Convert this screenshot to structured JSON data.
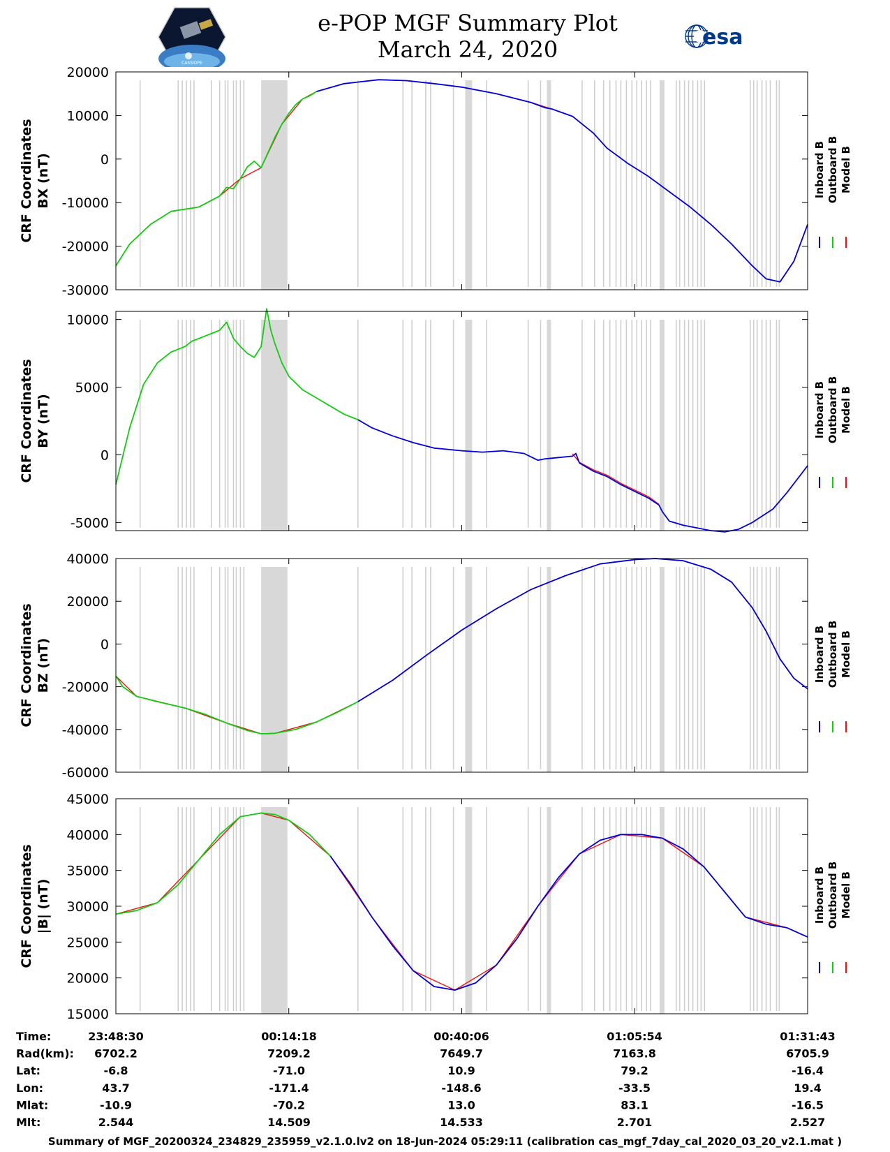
{
  "header": {
    "title": "e-POP MGF Summary Plot",
    "date": "March 24, 2020",
    "logo_left_text": "CASSIOPE",
    "logo_right_text": "esa"
  },
  "colors": {
    "inboard": "#0000dd",
    "outboard": "#11cc11",
    "model": "#ee1111",
    "gap_shade": "#d8d8d8",
    "gap_line": "#cfcfcf",
    "esa_blue": "#003a8c"
  },
  "legend": [
    "Inboard B",
    "Outboard B",
    "Model B"
  ],
  "chart_data": [
    {
      "type": "line",
      "id": "bx",
      "ylabel_line1": "CRF Coordinates",
      "ylabel_line2": "BX (nT)",
      "ylim": [
        -30000,
        20000
      ],
      "yticks": [
        20000,
        10000,
        0,
        -10000,
        -20000,
        -30000
      ],
      "xlim": [
        0,
        100
      ],
      "green_until": 29,
      "series": [
        {
          "name": "Outboard B",
          "x": [
            0,
            2,
            5,
            8,
            10,
            11,
            12,
            13,
            15,
            16,
            17,
            18,
            19,
            20,
            21,
            22,
            23,
            24,
            25,
            26,
            27,
            28,
            29
          ],
          "y": [
            -24500,
            -19500,
            -15000,
            -12000,
            -11500,
            -11300,
            -11000,
            -10200,
            -8500,
            -6500,
            -6800,
            -4500,
            -1800,
            -500,
            -2000,
            1500,
            5000,
            8000,
            10500,
            12500,
            13800,
            14500,
            15500
          ]
        },
        {
          "name": "Inboard B",
          "x": [
            29,
            33,
            38,
            42,
            46,
            50,
            55,
            60,
            62,
            63,
            66,
            69,
            71,
            74,
            77,
            80,
            83,
            86,
            89,
            92,
            94,
            96,
            98,
            100
          ],
          "y": [
            15500,
            17300,
            18200,
            18000,
            17300,
            16500,
            15000,
            13000,
            11800,
            11500,
            9800,
            6000,
            2500,
            -1000,
            -4000,
            -7500,
            -11000,
            -15000,
            -19500,
            -24500,
            -27500,
            -28200,
            -23500,
            -15000
          ]
        },
        {
          "name": "Model B",
          "x": [
            0,
            2,
            5,
            8,
            10,
            12,
            15,
            18,
            21,
            24,
            27,
            29,
            33,
            38,
            42,
            46,
            50,
            55,
            60,
            63,
            66,
            69,
            71,
            74,
            77,
            80,
            83,
            86,
            89,
            92,
            94,
            96,
            98,
            100
          ],
          "y": [
            -24500,
            -19500,
            -15000,
            -12000,
            -11500,
            -11000,
            -8500,
            -4500,
            -2000,
            8000,
            13800,
            15500,
            17300,
            18200,
            18000,
            17300,
            16500,
            15000,
            13000,
            11500,
            9800,
            6000,
            2500,
            -1000,
            -4000,
            -7500,
            -11000,
            -15000,
            -19500,
            -24500,
            -27500,
            -28200,
            -23500,
            -15000
          ]
        }
      ]
    },
    {
      "type": "line",
      "id": "by",
      "ylabel_line1": "CRF Coordinates",
      "ylabel_line2": "BY (nT)",
      "ylim": [
        -5600,
        10600
      ],
      "yticks": [
        10000,
        5000,
        0,
        -5000
      ],
      "xlim": [
        0,
        100
      ],
      "green_until": 35,
      "series": [
        {
          "name": "Outboard B",
          "x": [
            0,
            2,
            4,
            6,
            8,
            10,
            11,
            12,
            13,
            14,
            15,
            16,
            17,
            18,
            19,
            20,
            21,
            21.8,
            22.4,
            23,
            24,
            25,
            27,
            29,
            31,
            33,
            35
          ],
          "y": [
            -2200,
            2000,
            5200,
            6800,
            7600,
            8000,
            8400,
            8600,
            8800,
            9000,
            9200,
            9800,
            8600,
            8000,
            7500,
            7200,
            8000,
            10800,
            9200,
            8200,
            6800,
            5800,
            4800,
            4200,
            3600,
            3000,
            2600
          ]
        },
        {
          "name": "Inboard B",
          "x": [
            35,
            37,
            40,
            43,
            46,
            50,
            53,
            56,
            59,
            61,
            62,
            64,
            66,
            66.5,
            67,
            69,
            71,
            73,
            75,
            77,
            78.5,
            79,
            80,
            82,
            84,
            86,
            88,
            90,
            92,
            95,
            97,
            100
          ],
          "y": [
            2600,
            2000,
            1400,
            900,
            500,
            300,
            200,
            300,
            100,
            -400,
            -300,
            -200,
            -100,
            100,
            -600,
            -1200,
            -1600,
            -2200,
            -2700,
            -3200,
            -3700,
            -4200,
            -4900,
            -5200,
            -5400,
            -5600,
            -5700,
            -5500,
            -5000,
            -4000,
            -2800,
            -800
          ]
        },
        {
          "name": "Model B",
          "x": [
            66,
            67,
            69,
            71,
            73,
            75,
            77,
            78.5
          ],
          "y": [
            80,
            -550,
            -1100,
            -1500,
            -2100,
            -2600,
            -3100,
            -3650
          ]
        }
      ]
    },
    {
      "type": "line",
      "id": "bz",
      "ylabel_line1": "CRF Coordinates",
      "ylabel_line2": "BZ (nT)",
      "ylim": [
        -60000,
        40000
      ],
      "yticks": [
        40000,
        20000,
        0,
        -20000,
        -40000,
        -60000
      ],
      "xlim": [
        0,
        100
      ],
      "green_until": 35,
      "series": [
        {
          "name": "Outboard B",
          "x": [
            0,
            1,
            3,
            6,
            10,
            13,
            16,
            19,
            21,
            22,
            23,
            26,
            29,
            32,
            35
          ],
          "y": [
            -15000,
            -20000,
            -24500,
            -27000,
            -30000,
            -33000,
            -37000,
            -40500,
            -42000,
            -42000,
            -41800,
            -40000,
            -36500,
            -32000,
            -27000
          ]
        },
        {
          "name": "Inboard B",
          "x": [
            35,
            40,
            45,
            50,
            55,
            60,
            65,
            70,
            75,
            78,
            82,
            86,
            89,
            92,
            94,
            96,
            98,
            100
          ],
          "y": [
            -27000,
            -17000,
            -5000,
            6500,
            16500,
            25500,
            32000,
            37500,
            39500,
            40000,
            39000,
            35000,
            29000,
            17000,
            6000,
            -7000,
            -16000,
            -21000
          ]
        },
        {
          "name": "Model B",
          "x": [
            0,
            3,
            10,
            16,
            21,
            23,
            29,
            35,
            40,
            45,
            50,
            55,
            60,
            65,
            70,
            75,
            78,
            82,
            86,
            89,
            92,
            94,
            96,
            98,
            100
          ],
          "y": [
            -15000,
            -24500,
            -30000,
            -37000,
            -42000,
            -41800,
            -36500,
            -27000,
            -17000,
            -5000,
            6500,
            16500,
            25500,
            32000,
            37500,
            39500,
            40000,
            39000,
            35000,
            29000,
            17000,
            6000,
            -7000,
            -16000,
            -21000
          ]
        }
      ]
    },
    {
      "type": "line",
      "id": "bmag",
      "ylabel_line1": "CRF Coordinates",
      "ylabel_line2": "|B| (nT)",
      "ylim": [
        15000,
        45000
      ],
      "yticks": [
        45000,
        40000,
        35000,
        30000,
        25000,
        20000,
        15000
      ],
      "xlim": [
        0,
        100
      ],
      "green_until": 31,
      "series": [
        {
          "name": "Outboard B",
          "x": [
            0,
            3,
            6,
            9,
            12,
            15,
            18,
            21,
            23,
            25,
            28,
            31
          ],
          "y": [
            28900,
            29400,
            30500,
            33000,
            36500,
            40000,
            42500,
            43000,
            42800,
            42000,
            40000,
            37000
          ]
        },
        {
          "name": "Inboard B",
          "x": [
            31,
            34,
            37,
            40,
            43,
            46,
            49,
            52,
            55,
            58,
            61,
            64,
            67,
            70,
            73,
            76,
            79,
            82,
            85,
            88,
            91,
            94,
            97,
            100
          ],
          "y": [
            37000,
            33000,
            28500,
            24500,
            21000,
            18800,
            18300,
            19300,
            21800,
            25500,
            30000,
            34000,
            37300,
            39200,
            40000,
            40000,
            39500,
            38000,
            35500,
            32000,
            28500,
            27500,
            27000,
            25700
          ]
        },
        {
          "name": "Model B",
          "x": [
            0,
            6,
            12,
            18,
            21,
            25,
            31,
            37,
            43,
            49,
            55,
            61,
            67,
            73,
            79,
            85,
            91,
            97,
            100
          ],
          "y": [
            28900,
            30500,
            36500,
            42500,
            43000,
            42000,
            37000,
            28500,
            21000,
            18300,
            21800,
            30000,
            37300,
            40000,
            39500,
            35500,
            28500,
            27000,
            25700
          ]
        }
      ]
    }
  ],
  "gaps": {
    "bands": [
      [
        21,
        24.8
      ],
      [
        50.5,
        51.5
      ],
      [
        62.3,
        62.9
      ],
      [
        78.6,
        79.3
      ]
    ],
    "lines": [
      3.5,
      9,
      9.6,
      10.2,
      10.8,
      11.3,
      13.8,
      15,
      15.8,
      16.2,
      17,
      17.4,
      18,
      18.5,
      35,
      41.5,
      42.8,
      44.8,
      45.5,
      48.8,
      53.6,
      59.6,
      61.4,
      67.4,
      69.2,
      70.5,
      71.4,
      72.3,
      73,
      73.8,
      74.6,
      75.3,
      76,
      76.7,
      77.3,
      81,
      81.5,
      82.2,
      82.8,
      83.4,
      84.1,
      84.6,
      85.1,
      91.7,
      92.2,
      92.7,
      93.4,
      94,
      94.6,
      95.5,
      95.9
    ]
  },
  "x_ticks_frac": [
    0,
    25,
    50,
    75,
    100
  ],
  "orbit_table": {
    "row_labels": [
      "Time:",
      "Rad(km):",
      "Lat:",
      "Lon:",
      "Mlat:",
      "Mlt:"
    ],
    "columns": [
      [
        "23:48:30",
        "6702.2",
        "-6.8",
        "43.7",
        "-10.9",
        "2.544"
      ],
      [
        "00:14:18",
        "7209.2",
        "-71.0",
        "-171.4",
        "-70.2",
        "14.509"
      ],
      [
        "00:40:06",
        "7649.7",
        "10.9",
        "-148.6",
        "13.0",
        "14.533"
      ],
      [
        "01:05:54",
        "7163.8",
        "79.2",
        "-33.5",
        "83.1",
        "2.701"
      ],
      [
        "01:31:43",
        "6705.9",
        "-16.4",
        "19.4",
        "-16.5",
        "2.527"
      ]
    ]
  },
  "footer": "Summary of MGF_20200324_234829_235959_v2.1.0.lv2 on 18-Jun-2024 05:29:11 (calibration cas_mgf_7day_cal_2020_03_20_v2.1.mat )"
}
